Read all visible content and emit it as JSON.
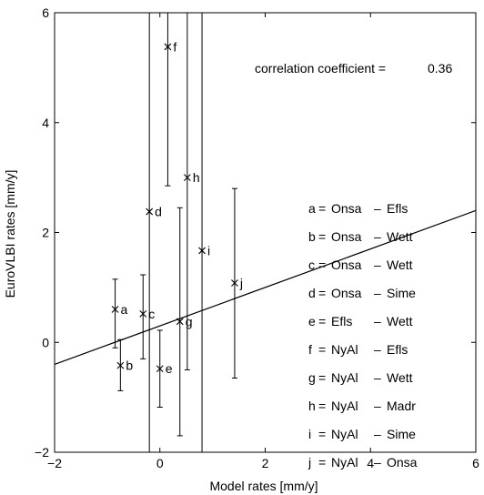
{
  "chart_data": {
    "type": "scatter",
    "xlabel": "Model rates [mm/y]",
    "ylabel": "EuroVLBI rates [mm/y]",
    "xlim": [
      -2,
      6
    ],
    "ylim": [
      -2,
      6
    ],
    "xticks": [
      -2,
      0,
      2,
      4,
      6
    ],
    "yticks": [
      -2,
      0,
      2,
      4,
      6
    ],
    "xtick_labels": [
      "−2",
      "0",
      "2",
      "4",
      "6"
    ],
    "ytick_labels": [
      "−2",
      "0",
      "2",
      "4",
      "6"
    ],
    "annotation": {
      "label": "correlation coefficient =",
      "value": "0.36"
    },
    "points": [
      {
        "id": "a",
        "x": -0.85,
        "y": 0.6,
        "err_low": -0.1,
        "err_high": 1.15
      },
      {
        "id": "b",
        "x": -0.75,
        "y": -0.42,
        "err_low": -0.88,
        "err_high": 0.05
      },
      {
        "id": "c",
        "x": -0.32,
        "y": 0.52,
        "err_low": -0.3,
        "err_high": 1.23
      },
      {
        "id": "d",
        "x": -0.2,
        "y": 2.38,
        "err_low": -2.0,
        "err_high": 6.0
      },
      {
        "id": "e",
        "x": 0.0,
        "y": -0.48,
        "err_low": -1.18,
        "err_high": 0.22
      },
      {
        "id": "f",
        "x": 0.15,
        "y": 5.38,
        "err_low": 2.85,
        "err_high": 6.0
      },
      {
        "id": "g",
        "x": 0.38,
        "y": 0.38,
        "err_low": -1.7,
        "err_high": 2.45
      },
      {
        "id": "h",
        "x": 0.52,
        "y": 3.0,
        "err_low": -0.5,
        "err_high": 6.0
      },
      {
        "id": "i",
        "x": 0.8,
        "y": 1.67,
        "err_low": -2.0,
        "err_high": 6.0
      },
      {
        "id": "j",
        "x": 1.42,
        "y": 1.08,
        "err_low": -0.65,
        "err_high": 2.8
      }
    ],
    "fit_line": {
      "x": [
        -2,
        6
      ],
      "y": [
        -0.4,
        2.4
      ]
    },
    "legend": [
      {
        "key": "a",
        "eq": "=",
        "station1": "Onsa",
        "dash": "–",
        "station2": "Efls"
      },
      {
        "key": "b",
        "eq": "=",
        "station1": "Onsa",
        "dash": "–",
        "station2": "Wett"
      },
      {
        "key": "c",
        "eq": "=",
        "station1": "Onsa",
        "dash": "–",
        "station2": "Wett"
      },
      {
        "key": "d",
        "eq": "=",
        "station1": "Onsa",
        "dash": "–",
        "station2": "Sime"
      },
      {
        "key": "e",
        "eq": "=",
        "station1": "Efls",
        "dash": "–",
        "station2": "Wett"
      },
      {
        "key": "f",
        "eq": "=",
        "station1": "NyAl",
        "dash": "–",
        "station2": "Efls"
      },
      {
        "key": "g",
        "eq": "=",
        "station1": "NyAl",
        "dash": "–",
        "station2": "Wett"
      },
      {
        "key": "h",
        "eq": "=",
        "station1": "NyAl",
        "dash": "–",
        "station2": "Madr"
      },
      {
        "key": "i",
        "eq": "=",
        "station1": "NyAl",
        "dash": "–",
        "station2": "Sime"
      },
      {
        "key": "j",
        "eq": "=",
        "station1": "NyAl",
        "dash": "–",
        "station2": "Onsa"
      }
    ]
  }
}
